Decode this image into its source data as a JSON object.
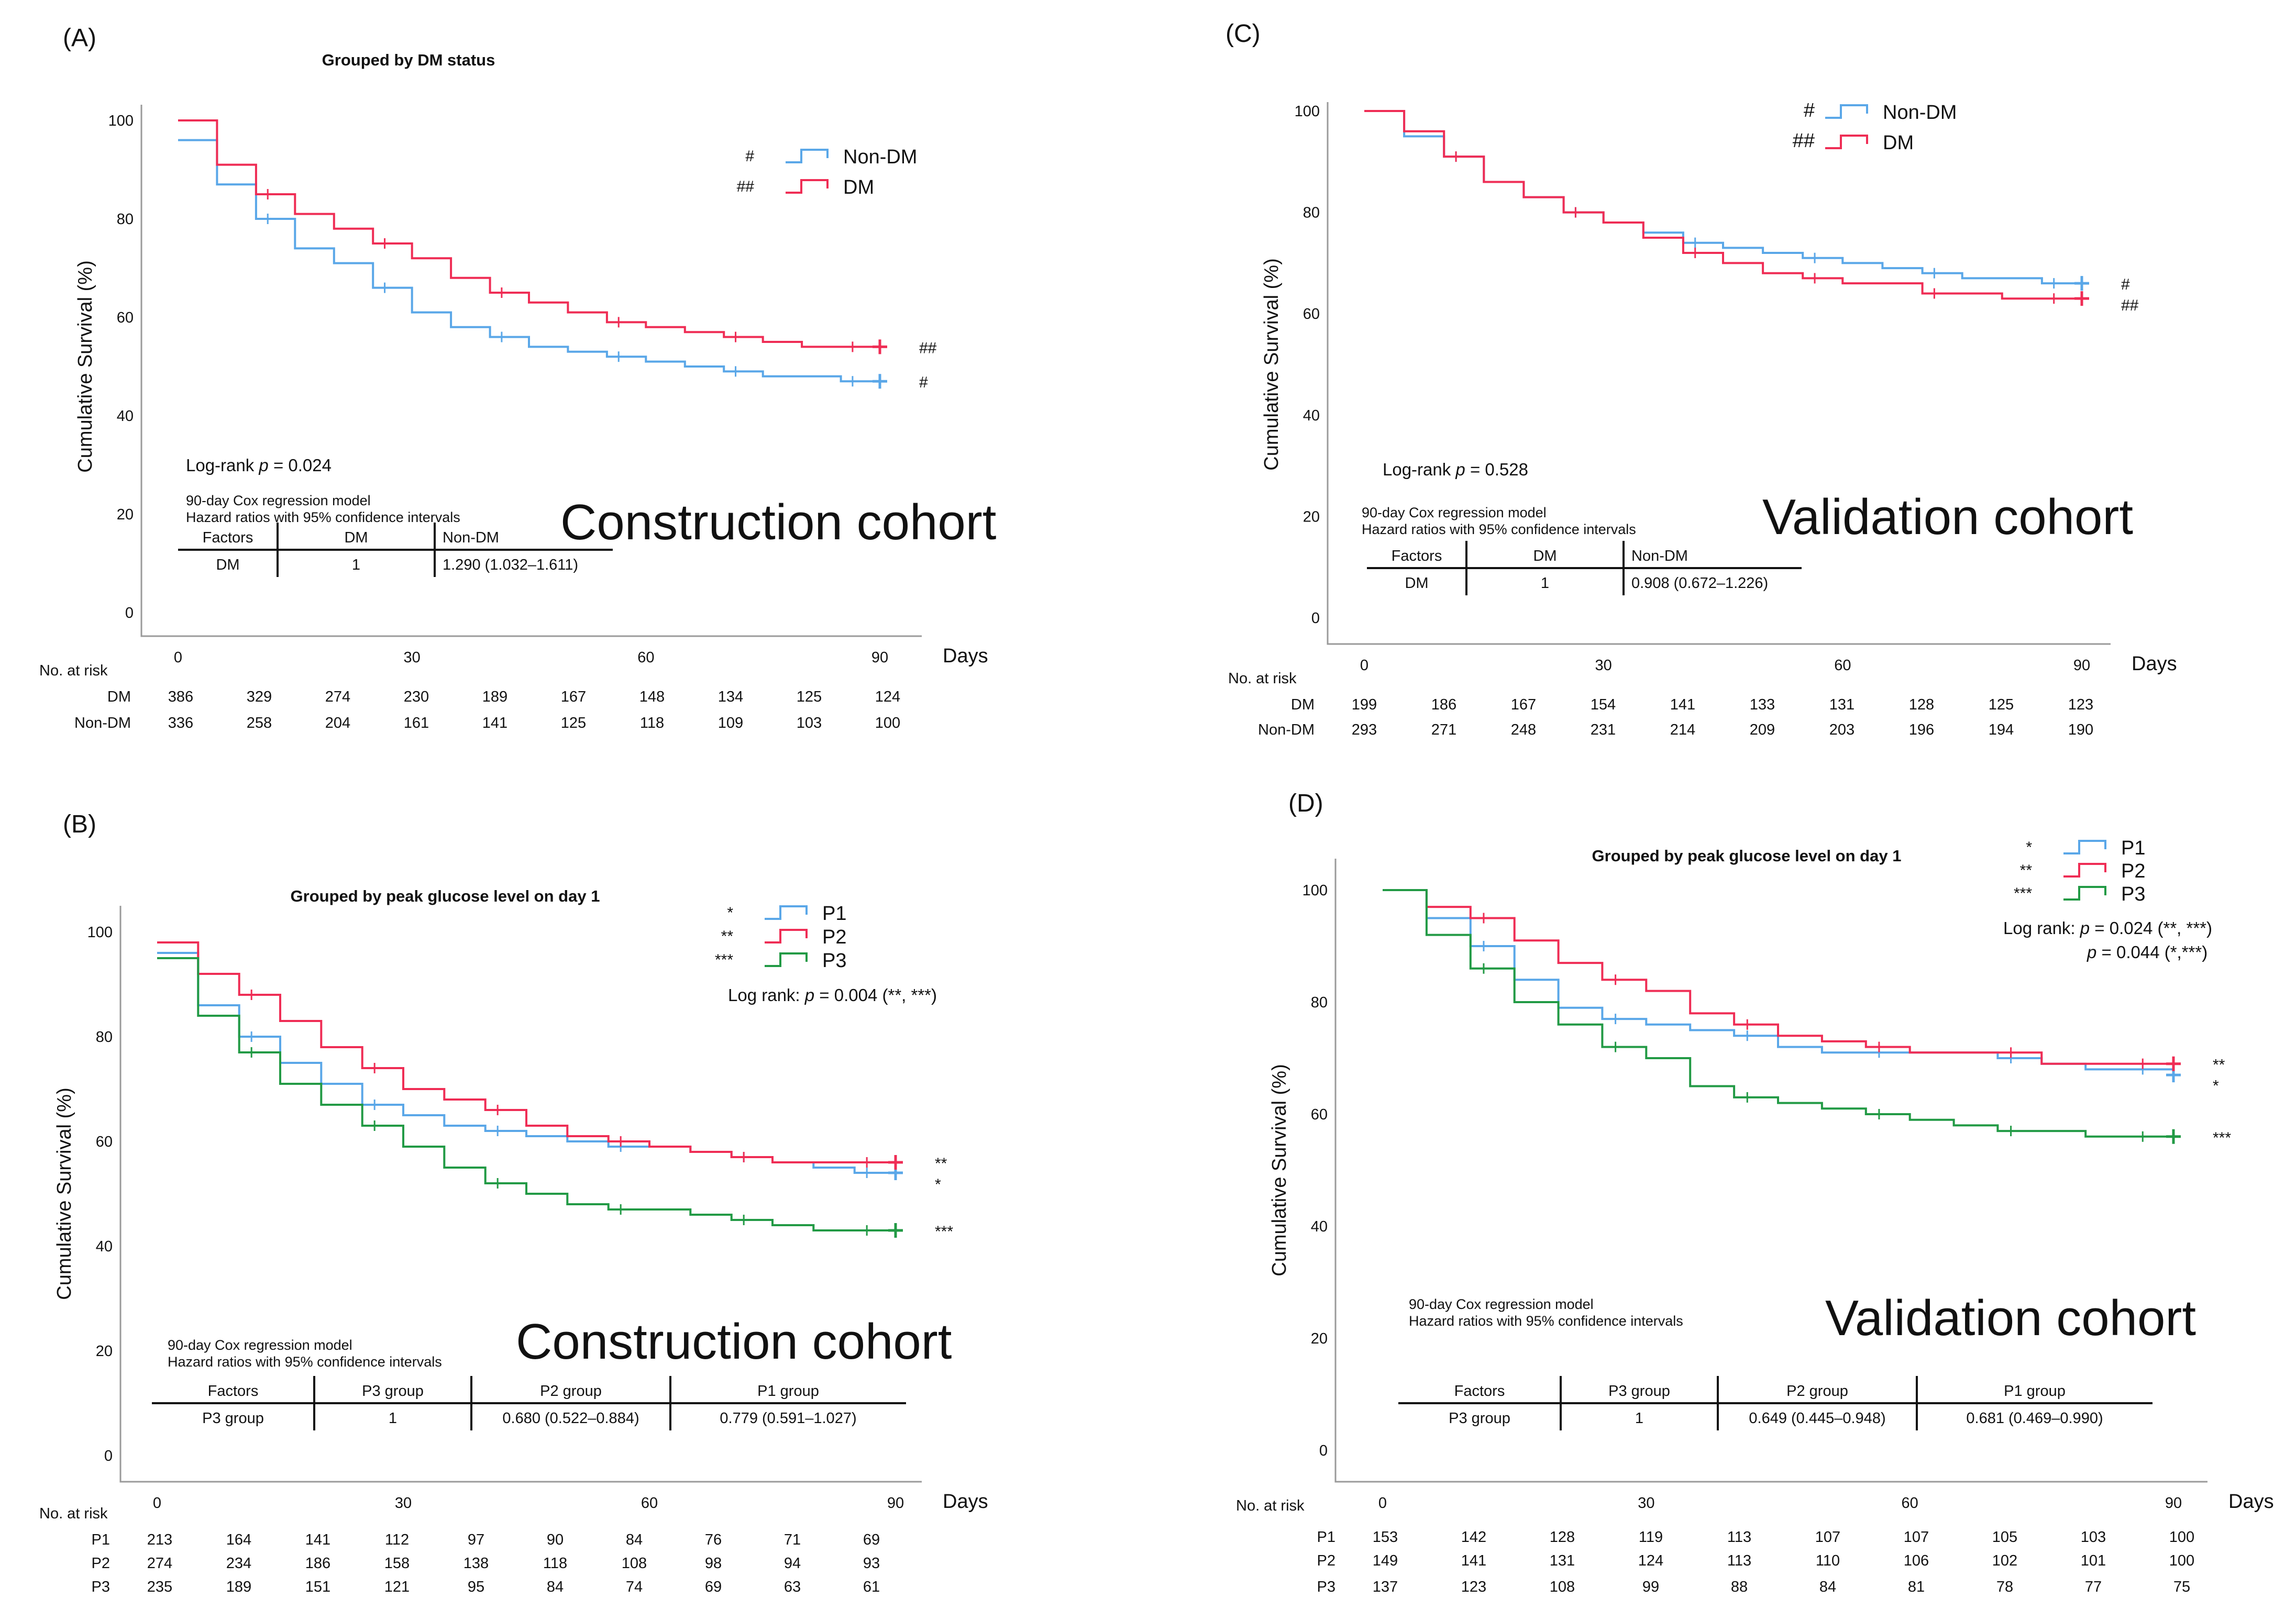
{
  "figure_colors": {
    "non_dm": "#5aa7e8",
    "dm": "#ef2d55",
    "p1": "#5aa7e8",
    "p2": "#ef2d55",
    "p3": "#229a45"
  },
  "risk_header": "No. at risk",
  "panels": [
    {
      "id": "A",
      "label": "(A)",
      "title": "Grouped by DM status",
      "ylabel": "Cumulative Survival (%)",
      "xlabel": "Days",
      "cohort_label": "Construction cohort",
      "stat_lines": [
        {
          "prefix": "Log-rank ",
          "italic": "p",
          "suffix": " = 0.024"
        }
      ],
      "cox_note": [
        "90-day Cox regression model",
        "Hazard ratios with 95% confidence intervals"
      ],
      "cox_table": {
        "headers": [
          "Factors",
          "DM",
          "Non-DM"
        ],
        "row": [
          "DM",
          "1",
          "1.290 (1.032–1.611)"
        ]
      },
      "risk_times": [
        0,
        10,
        20,
        30,
        40,
        50,
        60,
        70,
        80,
        90
      ],
      "chart_data": {
        "type": "line",
        "title": "Grouped by DM status",
        "xlabel": "Days",
        "ylabel": "Cumulative Survival (%)",
        "xlim": [
          0,
          90
        ],
        "ylim": [
          0,
          100
        ],
        "xticks": [
          0,
          30,
          60,
          90
        ],
        "yticks": [
          0,
          20,
          40,
          60,
          80,
          100
        ],
        "series": [
          {
            "name": "Non-DM",
            "marker": "#",
            "color": "#5aa7e8",
            "x": [
              0,
              5,
              10,
              15,
              20,
              25,
              30,
              35,
              40,
              45,
              50,
              55,
              60,
              65,
              70,
              75,
              80,
              85,
              90
            ],
            "y": [
              96,
              87,
              80,
              74,
              71,
              66,
              61,
              58,
              56,
              54,
              53,
              52,
              51,
              50,
              49,
              48,
              48,
              47,
              47
            ],
            "risk": [
              336,
              258,
              204,
              161,
              141,
              125,
              118,
              109,
              103,
              100
            ]
          },
          {
            "name": "DM",
            "marker": "##",
            "color": "#ef2d55",
            "x": [
              0,
              5,
              10,
              15,
              20,
              25,
              30,
              35,
              40,
              45,
              50,
              55,
              60,
              65,
              70,
              75,
              80,
              85,
              90
            ],
            "y": [
              100,
              91,
              85,
              81,
              78,
              75,
              72,
              68,
              65,
              63,
              61,
              59,
              58,
              57,
              56,
              55,
              54,
              54,
              54
            ],
            "risk": [
              386,
              329,
              274,
              230,
              189,
              167,
              148,
              134,
              125,
              124
            ]
          }
        ]
      }
    },
    {
      "id": "C",
      "label": "(C)",
      "title": "",
      "ylabel": "Cumulative Survival (%)",
      "xlabel": "Days",
      "cohort_label": "Validation cohort",
      "stat_lines": [
        {
          "prefix": "Log-rank ",
          "italic": "p",
          "suffix": " = 0.528"
        }
      ],
      "cox_note": [
        "90-day Cox regression model",
        "Hazard ratios with 95% confidence intervals"
      ],
      "cox_table": {
        "headers": [
          "Factors",
          "DM",
          "Non-DM"
        ],
        "row": [
          "DM",
          "1",
          "0.908 (0.672–1.226)"
        ]
      },
      "risk_times": [
        0,
        10,
        20,
        30,
        40,
        50,
        60,
        70,
        80,
        90
      ],
      "chart_data": {
        "type": "line",
        "title": "",
        "xlabel": "Days",
        "ylabel": "Cumulative Survival (%)",
        "xlim": [
          0,
          90
        ],
        "ylim": [
          0,
          100
        ],
        "xticks": [
          0,
          30,
          60,
          90
        ],
        "yticks": [
          0,
          20,
          40,
          60,
          80,
          100
        ],
        "series": [
          {
            "name": "Non-DM",
            "marker": "#",
            "color": "#5aa7e8",
            "x": [
              0,
              5,
              10,
              15,
              20,
              25,
              30,
              35,
              40,
              45,
              50,
              55,
              60,
              65,
              70,
              75,
              80,
              85,
              90
            ],
            "y": [
              100,
              95,
              91,
              86,
              83,
              80,
              78,
              76,
              74,
              73,
              72,
              71,
              70,
              69,
              68,
              67,
              67,
              66,
              66
            ],
            "risk": [
              293,
              271,
              248,
              231,
              214,
              209,
              203,
              196,
              194,
              190
            ]
          },
          {
            "name": "DM",
            "marker": "##",
            "color": "#ef2d55",
            "x": [
              0,
              5,
              10,
              15,
              20,
              25,
              30,
              35,
              40,
              45,
              50,
              55,
              60,
              65,
              70,
              75,
              80,
              85,
              90
            ],
            "y": [
              100,
              96,
              91,
              86,
              83,
              80,
              78,
              75,
              72,
              70,
              68,
              67,
              66,
              66,
              64,
              64,
              63,
              63,
              63
            ],
            "risk": [
              199,
              186,
              167,
              154,
              141,
              133,
              131,
              128,
              125,
              123
            ]
          }
        ]
      }
    },
    {
      "id": "B",
      "label": "(B)",
      "title": "Grouped by peak glucose level on day 1",
      "ylabel": "Cumulative Survival (%)",
      "xlabel": "Days",
      "cohort_label": "Construction cohort",
      "stat_lines": [
        {
          "prefix": "Log rank: ",
          "italic": "p",
          "suffix": " = 0.004 (**, ***)"
        }
      ],
      "cox_note": [
        "90-day Cox regression model",
        "Hazard ratios with 95% confidence intervals"
      ],
      "cox_table": {
        "headers": [
          "Factors",
          "P3 group",
          "P2 group",
          "P1 group"
        ],
        "row": [
          "P3 group",
          "1",
          "0.680 (0.522–0.884)",
          "0.779 (0.591–1.027)"
        ]
      },
      "risk_times": [
        0,
        10,
        20,
        30,
        40,
        50,
        60,
        70,
        80,
        90
      ],
      "chart_data": {
        "type": "line",
        "title": "Grouped by peak glucose level on day 1",
        "xlabel": "Days",
        "ylabel": "Cumulative Survival (%)",
        "xlim": [
          0,
          90
        ],
        "ylim": [
          0,
          100
        ],
        "xticks": [
          0,
          30,
          60,
          90
        ],
        "yticks": [
          0,
          20,
          40,
          60,
          80,
          100
        ],
        "series": [
          {
            "name": "P1",
            "marker": "*",
            "color": "#5aa7e8",
            "x": [
              0,
              5,
              10,
              15,
              20,
              25,
              30,
              35,
              40,
              45,
              50,
              55,
              60,
              65,
              70,
              75,
              80,
              85,
              90
            ],
            "y": [
              96,
              86,
              80,
              75,
              71,
              67,
              65,
              63,
              62,
              61,
              60,
              59,
              59,
              58,
              57,
              56,
              55,
              54,
              54
            ],
            "risk": [
              213,
              164,
              141,
              112,
              97,
              90,
              84,
              76,
              71,
              69
            ]
          },
          {
            "name": "P2",
            "marker": "**",
            "color": "#ef2d55",
            "x": [
              0,
              5,
              10,
              15,
              20,
              25,
              30,
              35,
              40,
              45,
              50,
              55,
              60,
              65,
              70,
              75,
              80,
              85,
              90
            ],
            "y": [
              98,
              92,
              88,
              83,
              78,
              74,
              70,
              68,
              66,
              63,
              61,
              60,
              59,
              58,
              57,
              56,
              56,
              56,
              56
            ],
            "risk": [
              274,
              234,
              186,
              158,
              138,
              118,
              108,
              98,
              94,
              93
            ]
          },
          {
            "name": "P3",
            "marker": "***",
            "color": "#229a45",
            "x": [
              0,
              5,
              10,
              15,
              20,
              25,
              30,
              35,
              40,
              45,
              50,
              55,
              60,
              65,
              70,
              75,
              80,
              85,
              90
            ],
            "y": [
              95,
              84,
              77,
              71,
              67,
              63,
              59,
              55,
              52,
              50,
              48,
              47,
              47,
              46,
              45,
              44,
              43,
              43,
              43
            ],
            "risk": [
              235,
              189,
              151,
              121,
              95,
              84,
              74,
              69,
              63,
              61
            ]
          }
        ]
      }
    },
    {
      "id": "D",
      "label": "(D)",
      "title": "Grouped by peak glucose level on day 1",
      "ylabel": "Cumulative Survival (%)",
      "xlabel": "Days",
      "cohort_label": "Validation cohort",
      "stat_lines": [
        {
          "prefix": "Log rank: ",
          "italic": "p",
          "suffix": " = 0.024 (**, ***)"
        },
        {
          "prefix": "",
          "italic": "p",
          "suffix": " = 0.044 (*,***)"
        }
      ],
      "cox_note": [
        "90-day Cox regression model",
        "Hazard ratios with 95% confidence intervals"
      ],
      "cox_table": {
        "headers": [
          "Factors",
          "P3 group",
          "P2 group",
          "P1 group"
        ],
        "row": [
          "P3 group",
          "1",
          "0.649 (0.445–0.948)",
          "0.681 (0.469–0.990)"
        ]
      },
      "risk_times": [
        0,
        10,
        20,
        30,
        40,
        50,
        60,
        70,
        80,
        90
      ],
      "chart_data": {
        "type": "line",
        "title": "Grouped by peak glucose level on day 1",
        "xlabel": "Days",
        "ylabel": "Cumulative Survival (%)",
        "xlim": [
          0,
          90
        ],
        "ylim": [
          0,
          100
        ],
        "xticks": [
          0,
          30,
          60,
          90
        ],
        "yticks": [
          0,
          20,
          40,
          60,
          80,
          100
        ],
        "series": [
          {
            "name": "P1",
            "marker": "*",
            "color": "#5aa7e8",
            "x": [
              0,
              5,
              10,
              15,
              20,
              25,
              30,
              35,
              40,
              45,
              50,
              55,
              60,
              65,
              70,
              75,
              80,
              85,
              90
            ],
            "y": [
              100,
              95,
              90,
              84,
              79,
              77,
              76,
              75,
              74,
              72,
              71,
              71,
              71,
              71,
              70,
              69,
              68,
              68,
              67
            ],
            "risk": [
              153,
              142,
              128,
              119,
              113,
              107,
              107,
              105,
              103,
              100
            ]
          },
          {
            "name": "P2",
            "marker": "**",
            "color": "#ef2d55",
            "x": [
              0,
              5,
              10,
              15,
              20,
              25,
              30,
              35,
              40,
              45,
              50,
              55,
              60,
              65,
              70,
              75,
              80,
              85,
              90
            ],
            "y": [
              100,
              97,
              95,
              91,
              87,
              84,
              82,
              78,
              76,
              74,
              73,
              72,
              71,
              71,
              71,
              69,
              69,
              69,
              69
            ],
            "risk": [
              149,
              141,
              131,
              124,
              113,
              110,
              106,
              102,
              101,
              100
            ]
          },
          {
            "name": "P3",
            "marker": "***",
            "color": "#229a45",
            "x": [
              0,
              5,
              10,
              15,
              20,
              25,
              30,
              35,
              40,
              45,
              50,
              55,
              60,
              65,
              70,
              75,
              80,
              85,
              90
            ],
            "y": [
              100,
              92,
              86,
              80,
              76,
              72,
              70,
              65,
              63,
              62,
              61,
              60,
              59,
              58,
              57,
              57,
              56,
              56,
              56
            ],
            "risk": [
              137,
              123,
              108,
              99,
              88,
              84,
              81,
              78,
              77,
              75
            ]
          }
        ]
      }
    }
  ]
}
